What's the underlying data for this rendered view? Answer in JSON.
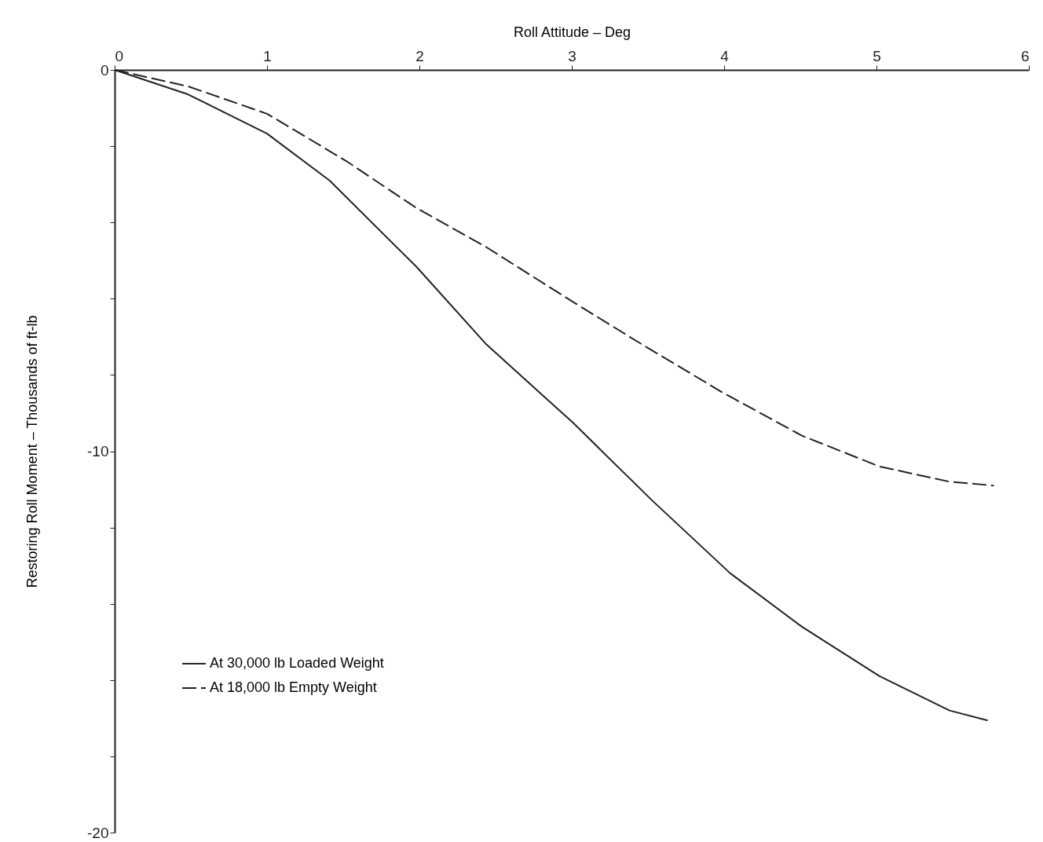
{
  "chart_data": {
    "type": "line",
    "xlabel": "Roll Attitude – Deg",
    "ylabel": "Restoring Roll Moment – Thousands of ft-lb",
    "xlim": [
      0,
      6
    ],
    "xticks": [
      0,
      1,
      2,
      3,
      4,
      5,
      6
    ],
    "ylim": [
      -20,
      0
    ],
    "yticks": [
      0,
      {
        "value": -2,
        "label": null
      },
      {
        "value": -4,
        "label": null
      },
      {
        "value": -6,
        "label": null
      },
      {
        "value": -8,
        "label": null
      },
      -10,
      {
        "value": -12,
        "label": null
      },
      {
        "value": -14,
        "label": null
      },
      {
        "value": -16,
        "label": null
      },
      {
        "value": -18,
        "label": null
      },
      -20
    ],
    "grid": false,
    "legend": "bottom left",
    "marker": "none",
    "series": [
      {
        "name": "At 30,000 lb Loaded Weight",
        "color": "#222222",
        "line_style": "solid",
        "x": [
          0,
          0.48,
          1.0,
          1.41,
          1.98,
          2.44,
          3.01,
          3.53,
          4.04,
          4.51,
          5.02,
          5.48,
          5.73
        ],
        "values": [
          0,
          -0.64,
          -1.67,
          -2.9,
          -5.16,
          -7.2,
          -9.26,
          -11.3,
          -13.2,
          -14.6,
          -15.9,
          -16.8,
          -17.06
        ]
      },
      {
        "name": "At 18,000 lb Empty Weight",
        "color": "#222222",
        "line_style": "dashed",
        "x": [
          0,
          0.48,
          1.0,
          1.52,
          1.98,
          2.44,
          3.01,
          3.47,
          3.99,
          4.51,
          5.02,
          5.48,
          5.77
        ],
        "values": [
          0,
          -0.43,
          -1.15,
          -2.39,
          -3.62,
          -4.65,
          -6.09,
          -7.22,
          -8.46,
          -9.59,
          -10.4,
          -10.8,
          -10.9
        ]
      }
    ]
  }
}
